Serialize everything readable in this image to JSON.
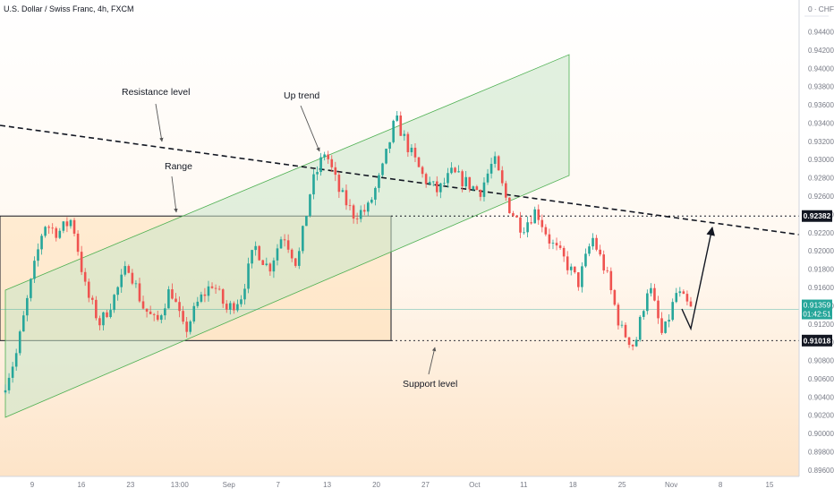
{
  "header": {
    "symbol_title": "U.S. Dollar / Swiss Franc, 4h, FXCM"
  },
  "price_axis": {
    "currency": "CHF",
    "currency_prefix": "0",
    "ticks": [
      "0.94400",
      "0.94200",
      "0.94000",
      "0.93800",
      "0.93600",
      "0.93400",
      "0.93200",
      "0.93000",
      "0.92800",
      "0.92600",
      "0.92400",
      "0.92200",
      "0.92000",
      "0.91800",
      "0.91600",
      "0.91400",
      "0.91200",
      "0.91000",
      "0.90800",
      "0.90600",
      "0.90400",
      "0.90200",
      "0.90000",
      "0.89800",
      "0.89600"
    ],
    "last_price": {
      "value": "0.91359",
      "countdown": "01:42:51",
      "color": "#26a69a"
    },
    "resistance_tag": {
      "value": "0.92382",
      "color": "#131722"
    },
    "support_tag": {
      "value": "0.91018",
      "color": "#131722"
    }
  },
  "time_axis": {
    "ticks": [
      "9",
      "16",
      "23",
      "13:00",
      "Sep",
      "7",
      "13",
      "20",
      "27",
      "Oct",
      "11",
      "18",
      "25",
      "Nov",
      "8",
      "15"
    ]
  },
  "annotations": {
    "resistance_label": "Resistance level",
    "uptrend_label": "Up trend",
    "range_label": "Range",
    "support_label": "Support level"
  },
  "colors": {
    "up_candle": "#26a69a",
    "down_candle": "#ef5350",
    "channel_fill": "#c8e6c9",
    "range_fill": "#ffe0b2",
    "background_warm": "#fdebd3"
  },
  "chart_data": {
    "type": "candlestick",
    "title": "U.S. Dollar / Swiss Franc, 4h, FXCM",
    "timeframe": "4h",
    "y_unit": "CHF",
    "ylim": [
      0.8955,
      0.9465
    ],
    "levels": {
      "resistance_horizontal": 0.92382,
      "support_horizontal": 0.91018,
      "last_price": 0.91359
    },
    "range_box": {
      "top": 0.92382,
      "bottom": 0.91018
    },
    "price_path": [
      {
        "date": "Aug 05",
        "price": 0.9045
      },
      {
        "date": "Aug 07",
        "price": 0.9085
      },
      {
        "date": "Aug 09",
        "price": 0.916
      },
      {
        "date": "Aug 11",
        "price": 0.923
      },
      {
        "date": "Aug 13",
        "price": 0.922
      },
      {
        "date": "Aug 15",
        "price": 0.9235
      },
      {
        "date": "Aug 17",
        "price": 0.9155
      },
      {
        "date": "Aug 19",
        "price": 0.912
      },
      {
        "date": "Aug 21",
        "price": 0.915
      },
      {
        "date": "Aug 23",
        "price": 0.9185
      },
      {
        "date": "Aug 25",
        "price": 0.914
      },
      {
        "date": "Aug 27",
        "price": 0.912
      },
      {
        "date": "Aug 29",
        "price": 0.916
      },
      {
        "date": "Aug 31",
        "price": 0.911
      },
      {
        "date": "Sep 02",
        "price": 0.9145
      },
      {
        "date": "Sep 04",
        "price": 0.9165
      },
      {
        "date": "Sep 06",
        "price": 0.9135
      },
      {
        "date": "Sep 08",
        "price": 0.915
      },
      {
        "date": "Sep 10",
        "price": 0.9205
      },
      {
        "date": "Sep 12",
        "price": 0.918
      },
      {
        "date": "Sep 14",
        "price": 0.922
      },
      {
        "date": "Sep 16",
        "price": 0.9185
      },
      {
        "date": "Sep 18",
        "price": 0.927
      },
      {
        "date": "Sep 20",
        "price": 0.931
      },
      {
        "date": "Sep 22",
        "price": 0.9265
      },
      {
        "date": "Sep 24",
        "price": 0.924
      },
      {
        "date": "Sep 26",
        "price": 0.9245
      },
      {
        "date": "Sep 28",
        "price": 0.9285
      },
      {
        "date": "Sep 30",
        "price": 0.9345
      },
      {
        "date": "Oct 02",
        "price": 0.931
      },
      {
        "date": "Oct 04",
        "price": 0.928
      },
      {
        "date": "Oct 06",
        "price": 0.9265
      },
      {
        "date": "Oct 08",
        "price": 0.9285
      },
      {
        "date": "Oct 10",
        "price": 0.9275
      },
      {
        "date": "Oct 12",
        "price": 0.9265
      },
      {
        "date": "Oct 14",
        "price": 0.93
      },
      {
        "date": "Oct 16",
        "price": 0.925
      },
      {
        "date": "Oct 18",
        "price": 0.9225
      },
      {
        "date": "Oct 20",
        "price": 0.9245
      },
      {
        "date": "Oct 22",
        "price": 0.921
      },
      {
        "date": "Oct 24",
        "price": 0.919
      },
      {
        "date": "Oct 26",
        "price": 0.9165
      },
      {
        "date": "Oct 28",
        "price": 0.9215
      },
      {
        "date": "Oct 30",
        "price": 0.9175
      },
      {
        "date": "Nov 01",
        "price": 0.9115
      },
      {
        "date": "Nov 02",
        "price": 0.9095
      },
      {
        "date": "Nov 03",
        "price": 0.9165
      },
      {
        "date": "Nov 04",
        "price": 0.9105
      },
      {
        "date": "Nov 05",
        "price": 0.9155
      },
      {
        "date": "Nov 06",
        "price": 0.9136
      }
    ],
    "annotations": [
      "Resistance level",
      "Up trend",
      "Range",
      "Support level"
    ],
    "grid": false,
    "legend": "none"
  }
}
